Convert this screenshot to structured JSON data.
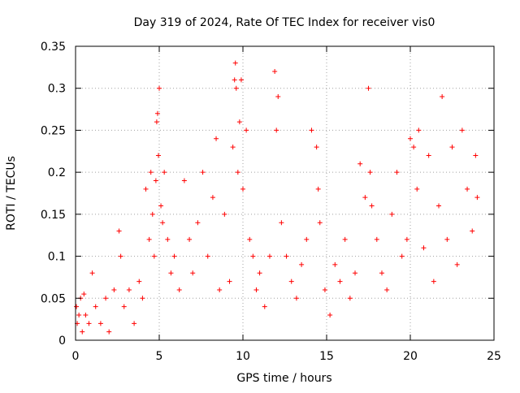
{
  "chart_data": {
    "type": "scatter",
    "title": "Day 319 of 2024, Rate Of TEC Index for receiver vis0",
    "xlabel": "GPS time / hours",
    "ylabel": "ROTI / TECUs",
    "xlim": [
      0,
      25
    ],
    "ylim": [
      0,
      0.35
    ],
    "xticks": [
      0,
      5,
      10,
      15,
      20,
      25
    ],
    "xtick_labels": [
      "0",
      "5",
      "10",
      "15",
      "20",
      "25"
    ],
    "yticks": [
      0,
      0.05,
      0.1,
      0.15,
      0.2,
      0.25,
      0.3,
      0.35
    ],
    "ytick_labels": [
      "0",
      "0.05",
      "0.1",
      "0.15",
      "0.2",
      "0.25",
      "0.3",
      "0.35"
    ],
    "grid": true,
    "marker": "+",
    "series": [
      {
        "name": "ROTI",
        "color": "#ff0000",
        "x": [
          0.05,
          0.1,
          0.2,
          0.3,
          0.4,
          0.5,
          0.6,
          0.8,
          1.0,
          1.2,
          1.5,
          1.8,
          2.0,
          2.3,
          2.6,
          2.7,
          2.9,
          3.2,
          3.5,
          3.8,
          4.0,
          4.2,
          4.4,
          4.5,
          4.6,
          4.7,
          4.8,
          4.85,
          4.9,
          4.95,
          5.0,
          5.1,
          5.2,
          5.3,
          5.5,
          5.7,
          5.9,
          6.2,
          6.5,
          6.8,
          7.0,
          7.3,
          7.6,
          7.9,
          8.2,
          8.4,
          8.6,
          8.9,
          9.2,
          9.4,
          9.5,
          9.55,
          9.6,
          9.7,
          9.8,
          9.9,
          10.0,
          10.2,
          10.4,
          10.6,
          10.8,
          11.0,
          11.3,
          11.6,
          11.9,
          12.0,
          12.1,
          12.3,
          12.6,
          12.9,
          13.2,
          13.5,
          13.8,
          14.1,
          14.4,
          14.5,
          14.6,
          14.9,
          15.2,
          15.5,
          15.8,
          16.1,
          16.4,
          16.7,
          17.0,
          17.3,
          17.5,
          17.6,
          17.7,
          18.0,
          18.3,
          18.6,
          18.9,
          19.2,
          19.5,
          19.8,
          20.0,
          20.2,
          20.4,
          20.5,
          20.8,
          21.1,
          21.4,
          21.7,
          21.9,
          22.2,
          22.5,
          22.8,
          23.1,
          23.4,
          23.7,
          23.9,
          24.0
        ],
        "y": [
          0.04,
          0.02,
          0.03,
          0.05,
          0.01,
          0.055,
          0.03,
          0.02,
          0.08,
          0.04,
          0.02,
          0.05,
          0.01,
          0.06,
          0.13,
          0.1,
          0.04,
          0.06,
          0.02,
          0.07,
          0.05,
          0.18,
          0.12,
          0.2,
          0.15,
          0.1,
          0.19,
          0.26,
          0.27,
          0.22,
          0.3,
          0.16,
          0.14,
          0.2,
          0.12,
          0.08,
          0.1,
          0.06,
          0.19,
          0.12,
          0.08,
          0.14,
          0.2,
          0.1,
          0.17,
          0.24,
          0.06,
          0.15,
          0.07,
          0.23,
          0.31,
          0.33,
          0.3,
          0.2,
          0.26,
          0.31,
          0.18,
          0.25,
          0.12,
          0.1,
          0.06,
          0.08,
          0.04,
          0.1,
          0.32,
          0.25,
          0.29,
          0.14,
          0.1,
          0.07,
          0.05,
          0.09,
          0.12,
          0.25,
          0.23,
          0.18,
          0.14,
          0.06,
          0.03,
          0.09,
          0.07,
          0.12,
          0.05,
          0.08,
          0.21,
          0.17,
          0.3,
          0.2,
          0.16,
          0.12,
          0.08,
          0.06,
          0.15,
          0.2,
          0.1,
          0.12,
          0.24,
          0.23,
          0.18,
          0.25,
          0.11,
          0.22,
          0.07,
          0.16,
          0.29,
          0.12,
          0.23,
          0.09,
          0.25,
          0.18,
          0.13,
          0.22,
          0.17
        ]
      }
    ]
  }
}
